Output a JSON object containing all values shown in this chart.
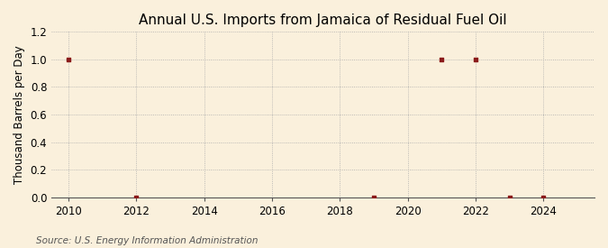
{
  "title": "Annual U.S. Imports from Jamaica of Residual Fuel Oil",
  "ylabel": "Thousand Barrels per Day",
  "source": "Source: U.S. Energy Information Administration",
  "xlim": [
    2009.5,
    2025.5
  ],
  "ylim": [
    0.0,
    1.2
  ],
  "yticks": [
    0.0,
    0.2,
    0.4,
    0.6,
    0.8,
    1.0,
    1.2
  ],
  "xticks": [
    2010,
    2012,
    2014,
    2016,
    2018,
    2020,
    2022,
    2024
  ],
  "data_years": [
    2010,
    2012,
    2019,
    2021,
    2022,
    2023,
    2024
  ],
  "data_values": [
    1.0,
    0.0,
    0.0,
    1.0,
    1.0,
    0.0,
    0.0
  ],
  "marker_color": "#8B1A1A",
  "marker_size": 3.5,
  "bg_color": "#FAF0DC",
  "plot_bg_color": "#FAF0DC",
  "grid_color": "#AAAAAA",
  "grid_linestyle": ":",
  "title_fontsize": 11,
  "axis_label_fontsize": 8.5,
  "tick_fontsize": 8.5,
  "source_fontsize": 7.5
}
